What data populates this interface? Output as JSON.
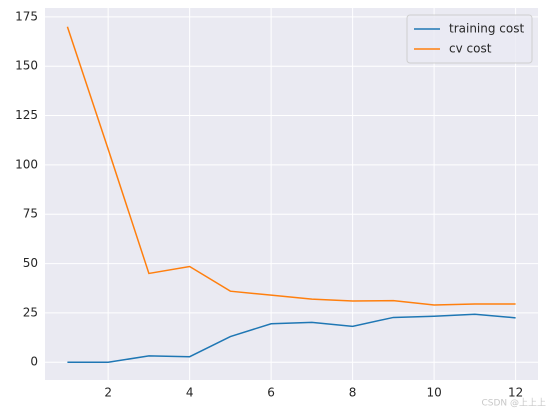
{
  "chart_data": {
    "type": "line",
    "x": [
      1,
      2,
      3,
      4,
      5,
      6,
      7,
      8,
      9,
      10,
      11,
      12
    ],
    "series": [
      {
        "name": "training cost",
        "color": "#1f77b4",
        "values": [
          0,
          0,
          3.2,
          2.8,
          13,
          19.5,
          20.2,
          18.2,
          22.7,
          23.3,
          24.3,
          22.5
        ]
      },
      {
        "name": "cv cost",
        "color": "#ff7f0e",
        "values": [
          170,
          108,
          45,
          48.5,
          36,
          34,
          32,
          31,
          31.2,
          29,
          29.5,
          29.5
        ]
      }
    ],
    "xlim": [
      0.45,
      12.55
    ],
    "xticks": [
      2,
      4,
      6,
      8,
      10,
      12
    ],
    "ylim": [
      -9,
      179.5
    ],
    "yticks": [
      0,
      25,
      50,
      75,
      100,
      125,
      150,
      175
    ],
    "grid": true,
    "legend": "upper right",
    "background": "#eaeaf2",
    "watermark": "CSDN @上上上"
  }
}
